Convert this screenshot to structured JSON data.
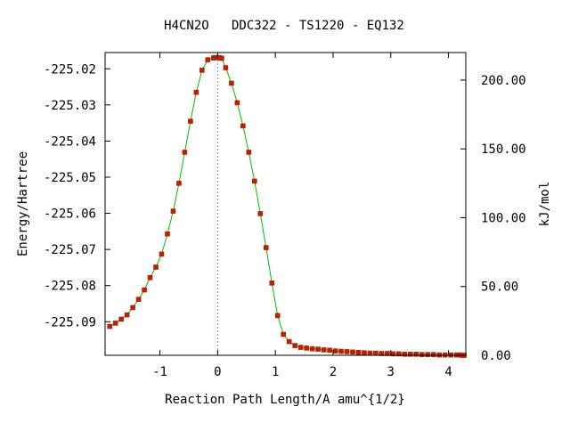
{
  "chart_data": {
    "type": "line",
    "title": "H4CN2O   DDC322 - TS1220 - EQ132",
    "xlabel": "Reaction Path Length/A amu^{1/2}",
    "ylabel": "Energy/Hartree",
    "y2label": "kJ/mol",
    "xlim": [
      -1.95,
      4.3
    ],
    "ylim": [
      -225.0993,
      -225.0155
    ],
    "xticks": [
      -1,
      0,
      1,
      2,
      3,
      4
    ],
    "xtick_labels": [
      "-1",
      "0",
      "1",
      "2",
      "3",
      "4"
    ],
    "yticks": [
      -225.02,
      -225.03,
      -225.04,
      -225.05,
      -225.06,
      -225.07,
      -225.08,
      -225.09
    ],
    "ytick_labels": [
      "-225.02",
      "-225.03",
      "-225.04",
      "-225.05",
      "-225.06",
      "-225.07",
      "-225.08",
      "-225.09"
    ],
    "y2ticks": [
      0,
      50,
      100,
      150,
      200
    ],
    "y2tick_labels": [
      "0.00",
      "50.00",
      "100.00",
      "150.00",
      "200.00"
    ],
    "y2_zero_energy": -225.0993,
    "y2_per_hartree": 2625.5,
    "ts_x": 0.0,
    "grid": false,
    "line_color": "#00bb00",
    "marker_color": "#dd1100",
    "ts_line_color": "#999999",
    "series": [
      {
        "x": [
          -1.87,
          -1.77,
          -1.67,
          -1.57,
          -1.47,
          -1.37,
          -1.27,
          -1.17,
          -1.07,
          -0.97,
          -0.87,
          -0.77,
          -0.67,
          -0.57,
          -0.47,
          -0.37,
          -0.27,
          -0.17,
          -0.07,
          -0.04,
          -0.02,
          0.0,
          0.02,
          0.04,
          0.07,
          0.14,
          0.24,
          0.34,
          0.44,
          0.54,
          0.64,
          0.74,
          0.84,
          0.94,
          1.04,
          1.14,
          1.24,
          1.34,
          1.44,
          1.54,
          1.64,
          1.74,
          1.84,
          1.94,
          2.04,
          2.14,
          2.24,
          2.34,
          2.44,
          2.54,
          2.64,
          2.74,
          2.84,
          2.94,
          3.04,
          3.14,
          3.24,
          3.34,
          3.44,
          3.54,
          3.64,
          3.74,
          3.84,
          3.94,
          4.04,
          4.14,
          4.19,
          4.24,
          4.27
        ],
        "y": [
          -225.0913,
          -225.0904,
          -225.0893,
          -225.0881,
          -225.0861,
          -225.0838,
          -225.0812,
          -225.0778,
          -225.0749,
          -225.0713,
          -225.0657,
          -225.0594,
          -225.0517,
          -225.0431,
          -225.0345,
          -225.0265,
          -225.0204,
          -225.0175,
          -225.017,
          -225.0169,
          -225.0169,
          -225.0169,
          -225.0169,
          -225.017,
          -225.0171,
          -225.0197,
          -225.024,
          -225.0294,
          -225.0358,
          -225.0431,
          -225.0511,
          -225.0601,
          -225.0695,
          -225.0793,
          -225.0883,
          -225.0935,
          -225.0955,
          -225.0966,
          -225.0971,
          -225.0973,
          -225.0975,
          -225.0976,
          -225.0978,
          -225.0979,
          -225.0981,
          -225.0982,
          -225.0983,
          -225.0984,
          -225.0985,
          -225.0986,
          -225.0987,
          -225.0987,
          -225.0988,
          -225.0988,
          -225.0989,
          -225.0989,
          -225.099,
          -225.099,
          -225.099,
          -225.0991,
          -225.0991,
          -225.0991,
          -225.0992,
          -225.0992,
          -225.0992,
          -225.0992,
          -225.0992,
          -225.0993,
          -225.0993
        ]
      }
    ]
  }
}
